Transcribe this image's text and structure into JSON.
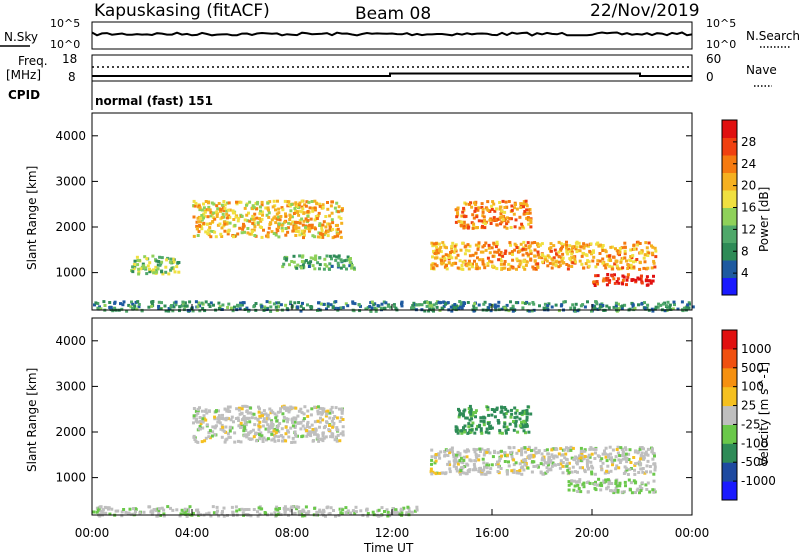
{
  "header": {
    "station": "Kapuskasing (fitACF)",
    "beam": "Beam 08",
    "date": "22/Nov/2019"
  },
  "left_labels": {
    "nsky": "N.Sky",
    "freq_line1": "Freq.",
    "freq_line2": "[MHz]",
    "cpid": "CPID"
  },
  "right_labels": {
    "nsearch": "N.Search",
    "nave": "Nave"
  },
  "noise_panel": {
    "ticks_left": [
      "10^5",
      "10^0"
    ],
    "ticks_right": [
      "10^5",
      "10^0"
    ]
  },
  "freq_panel": {
    "ticks_left": [
      "18",
      "8"
    ],
    "ticks_right": [
      "60",
      "0"
    ]
  },
  "cpid_panel": {
    "text": "normal (fast) 151"
  },
  "power_panel": {
    "ylabel": "Slant Range [km]",
    "yticks": [
      "4000",
      "3000",
      "2000",
      "1000"
    ],
    "colorbar_label": "Power [dB]",
    "colorbar_ticks": [
      "28",
      "24",
      "20",
      "16",
      "12",
      "8",
      "4"
    ],
    "colors": [
      "#1a1aff",
      "#1e5aa0",
      "#2e8b57",
      "#4fa86a",
      "#8fd15a",
      "#f0e040",
      "#f5b020",
      "#f57a10",
      "#f04010",
      "#e01010"
    ]
  },
  "velocity_panel": {
    "ylabel": "Slant Range [km]",
    "yticks": [
      "4000",
      "3000",
      "2000",
      "1000"
    ],
    "colorbar_label": "Velocity [m s^-1]",
    "colorbar_ticks": [
      "1000",
      "500",
      "100",
      "25",
      "-25",
      "-100",
      "-500",
      "-1000"
    ],
    "colors": [
      "#1a1aff",
      "#1e4aa0",
      "#2e8b57",
      "#6ac84a",
      "#bfbfbf",
      "#f5c020",
      "#f59010",
      "#f05010",
      "#e01010"
    ]
  },
  "xaxis": {
    "ticks": [
      "00:00",
      "04:00",
      "08:00",
      "12:00",
      "16:00",
      "20:00",
      "00:00"
    ],
    "label": "Time UT"
  },
  "chart_data": {
    "type": "heatmap",
    "title": "Kapuskasing (fitACF) Beam 08 22/Nov/2019",
    "xlabel": "Time UT",
    "ylabel": "Slant Range [km]",
    "x_range": [
      "00:00",
      "24:00"
    ],
    "ylim": [
      180,
      4500
    ],
    "series": [
      {
        "name": "Power [dB]",
        "clim": [
          0,
          30
        ],
        "echo_regions": [
          {
            "t_start": 4.0,
            "t_end": 10.0,
            "range_km": [
              1800,
              2600
            ],
            "value": 18
          },
          {
            "t_start": 1.5,
            "t_end": 3.5,
            "range_km": [
              1000,
              1400
            ],
            "value": 12
          },
          {
            "t_start": 7.5,
            "t_end": 10.5,
            "range_km": [
              1100,
              1400
            ],
            "value": 10
          },
          {
            "t_start": 13.5,
            "t_end": 22.5,
            "range_km": [
              1100,
              1700
            ],
            "value": 20
          },
          {
            "t_start": 14.5,
            "t_end": 17.5,
            "range_km": [
              2000,
              2600
            ],
            "value": 22
          },
          {
            "t_start": 20.0,
            "t_end": 22.5,
            "range_km": [
              750,
              1000
            ],
            "value": 28
          },
          {
            "t_start": 0.0,
            "t_end": 24.0,
            "range_km": [
              180,
              400
            ],
            "value": 8
          }
        ]
      },
      {
        "name": "Velocity [m s^-1]",
        "clim": [
          -1000,
          1000
        ],
        "echo_regions": [
          {
            "t_start": 4.0,
            "t_end": 10.0,
            "range_km": [
              1800,
              2600
            ],
            "value": 0
          },
          {
            "t_start": 13.5,
            "t_end": 22.5,
            "range_km": [
              1100,
              1700
            ],
            "value": 0
          },
          {
            "t_start": 14.5,
            "t_end": 17.5,
            "range_km": [
              2000,
              2600
            ],
            "value": -400
          },
          {
            "t_start": 19.0,
            "t_end": 22.5,
            "range_km": [
              700,
              1000
            ],
            "value": -100
          },
          {
            "t_start": 0.0,
            "t_end": 13.0,
            "range_km": [
              180,
              400
            ],
            "value": -50
          }
        ]
      }
    ]
  }
}
